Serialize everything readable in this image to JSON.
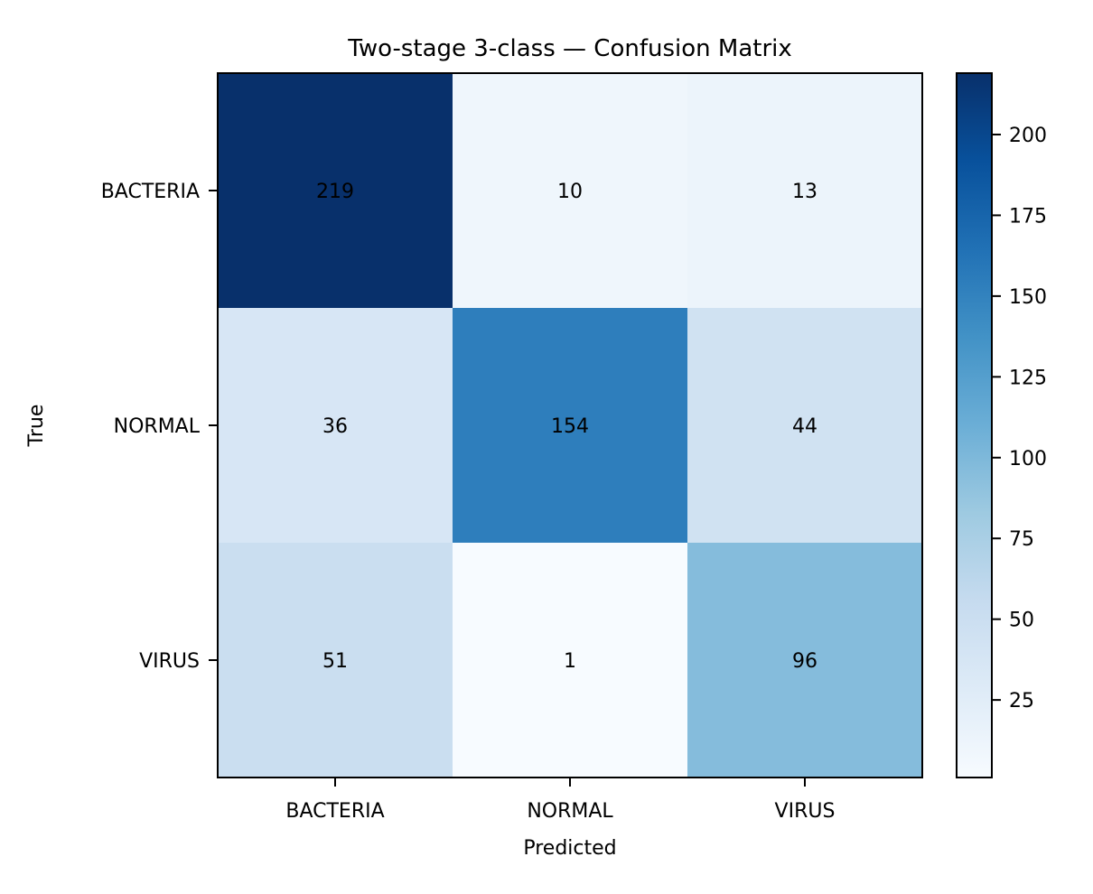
{
  "chart_data": {
    "type": "heatmap",
    "title": "Two-stage 3-class — Confusion Matrix",
    "xlabel": "Predicted",
    "ylabel": "True",
    "x_categories": [
      "BACTERIA",
      "NORMAL",
      "VIRUS"
    ],
    "y_categories": [
      "BACTERIA",
      "NORMAL",
      "VIRUS"
    ],
    "values": [
      [
        219,
        10,
        13
      ],
      [
        36,
        154,
        44
      ],
      [
        51,
        1,
        96
      ]
    ],
    "colormap": "Blues",
    "color_range": [
      1,
      219
    ],
    "colorbar_ticks": [
      25,
      50,
      75,
      100,
      125,
      150,
      175,
      200
    ],
    "grid": false
  }
}
